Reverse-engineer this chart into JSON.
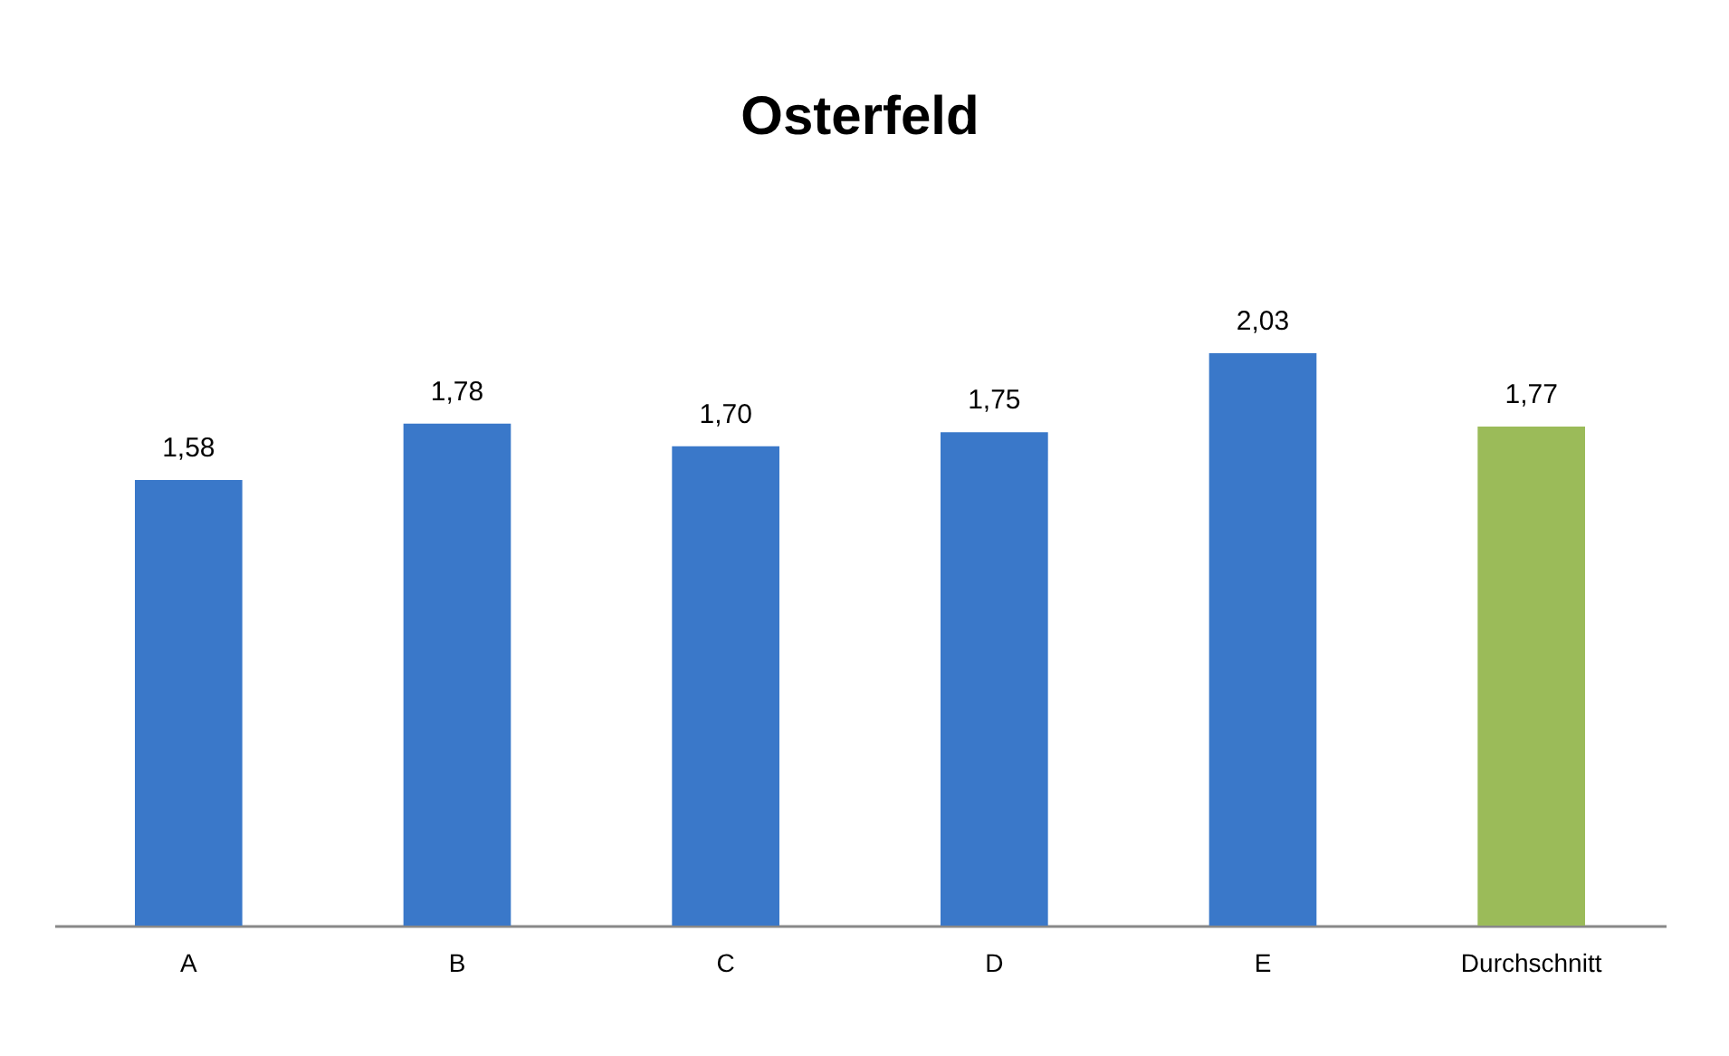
{
  "chart_data": {
    "type": "bar",
    "title": "Osterfeld",
    "categories": [
      "A",
      "B",
      "C",
      "D",
      "E",
      "Durchschnitt"
    ],
    "values": [
      1.58,
      1.78,
      1.7,
      1.75,
      2.03,
      1.77
    ],
    "colors": [
      "#3a78c9",
      "#3a78c9",
      "#3a78c9",
      "#3a78c9",
      "#3a78c9",
      "#9bbb59"
    ],
    "value_labels": [
      "1,58",
      "1,78",
      "1,70",
      "1,75",
      "2,03",
      "1,77"
    ],
    "tick_labels": "x",
    "grid": false
  }
}
